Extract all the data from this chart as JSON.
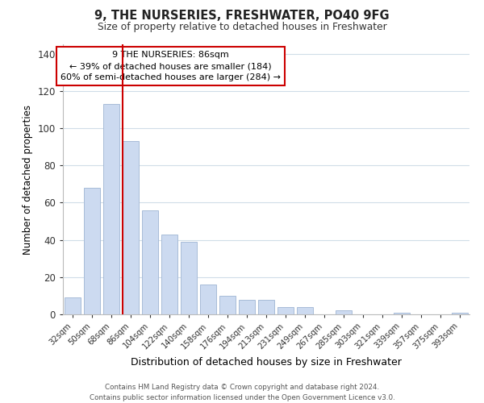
{
  "title": "9, THE NURSERIES, FRESHWATER, PO40 9FG",
  "subtitle": "Size of property relative to detached houses in Freshwater",
  "xlabel": "Distribution of detached houses by size in Freshwater",
  "ylabel": "Number of detached properties",
  "bar_labels": [
    "32sqm",
    "50sqm",
    "68sqm",
    "86sqm",
    "104sqm",
    "122sqm",
    "140sqm",
    "158sqm",
    "176sqm",
    "194sqm",
    "213sqm",
    "231sqm",
    "249sqm",
    "267sqm",
    "285sqm",
    "303sqm",
    "321sqm",
    "339sqm",
    "357sqm",
    "375sqm",
    "393sqm"
  ],
  "bar_values": [
    9,
    68,
    113,
    93,
    56,
    43,
    39,
    16,
    10,
    8,
    8,
    4,
    4,
    0,
    2,
    0,
    0,
    1,
    0,
    0,
    1
  ],
  "bar_color": "#ccdaf0",
  "bar_edge_color": "#a8bcd8",
  "highlight_index": 3,
  "highlight_line_color": "#cc0000",
  "ylim": [
    0,
    145
  ],
  "yticks": [
    0,
    20,
    40,
    60,
    80,
    100,
    120,
    140
  ],
  "annotation_title": "9 THE NURSERIES: 86sqm",
  "annotation_line1": "← 39% of detached houses are smaller (184)",
  "annotation_line2": "60% of semi-detached houses are larger (284) →",
  "annotation_box_color": "#ffffff",
  "annotation_box_edge": "#cc0000",
  "footer_line1": "Contains HM Land Registry data © Crown copyright and database right 2024.",
  "footer_line2": "Contains public sector information licensed under the Open Government Licence v3.0.",
  "background_color": "#ffffff",
  "grid_color": "#d0dde8"
}
